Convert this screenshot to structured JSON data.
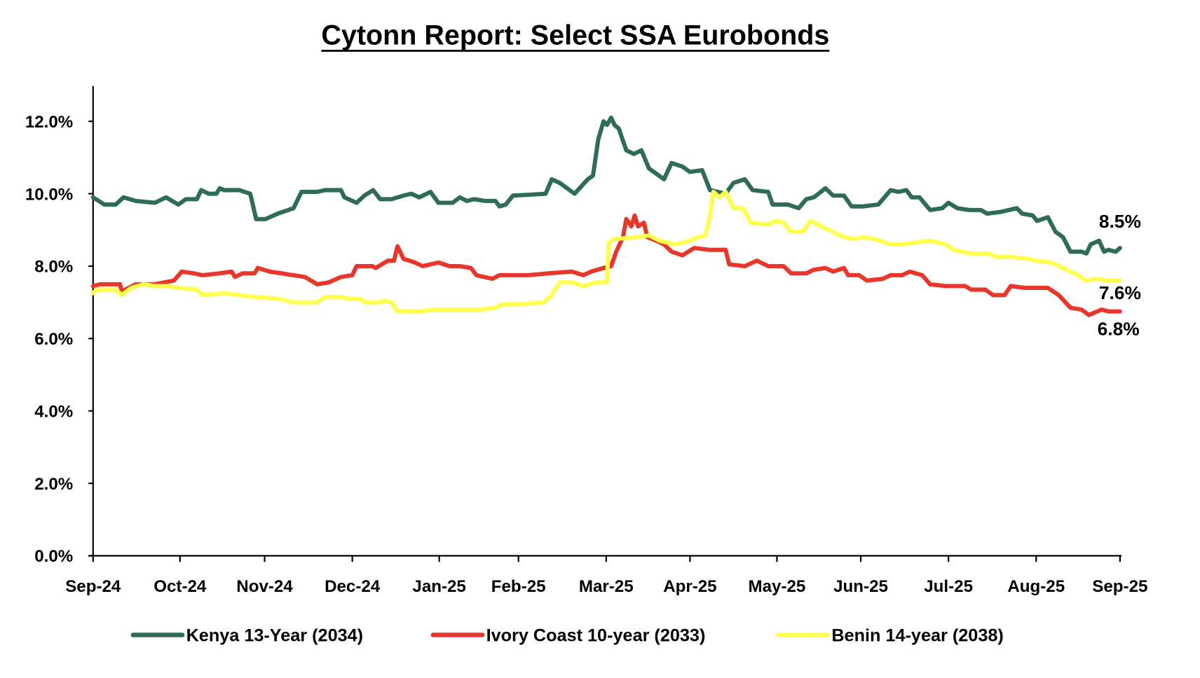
{
  "chart_data": {
    "type": "line",
    "title": "Cytonn Report: Select SSA Eurobonds",
    "xlabel": "",
    "ylabel": "",
    "x_unit": "months since Sep-24",
    "categories": [
      "Sep-24",
      "Oct-24",
      "Nov-24",
      "Dec-24",
      "Jan-25",
      "Feb-25",
      "Mar-25",
      "Apr-25",
      "May-25",
      "Jun-25",
      "Jul-25",
      "Aug-25",
      "Sep-25"
    ],
    "y_ticks": [
      "0.0%",
      "2.0%",
      "4.0%",
      "6.0%",
      "8.0%",
      "10.0%",
      "12.0%"
    ],
    "ylim": [
      0,
      13
    ],
    "grid": false,
    "legend_position": "bottom",
    "series": [
      {
        "name": "Kenya 13-Year (2034)",
        "color": "#2e6b58",
        "end_label": "8.5%",
        "points": [
          [
            0,
            9.9
          ],
          [
            0.13,
            9.7
          ],
          [
            0.26,
            9.7
          ],
          [
            0.35,
            9.9
          ],
          [
            0.49,
            9.8
          ],
          [
            0.71,
            9.75
          ],
          [
            0.84,
            9.9
          ],
          [
            0.98,
            9.7
          ],
          [
            1.07,
            9.85
          ],
          [
            1.2,
            9.85
          ],
          [
            1.25,
            10.1
          ],
          [
            1.34,
            10.0
          ],
          [
            1.43,
            10.0
          ],
          [
            1.47,
            10.15
          ],
          [
            1.52,
            10.1
          ],
          [
            1.7,
            10.1
          ],
          [
            1.83,
            10.0
          ],
          [
            1.9,
            9.3
          ],
          [
            2.01,
            9.3
          ],
          [
            2.15,
            9.45
          ],
          [
            2.33,
            9.6
          ],
          [
            2.42,
            10.05
          ],
          [
            2.6,
            10.05
          ],
          [
            2.69,
            10.1
          ],
          [
            2.87,
            10.1
          ],
          [
            2.91,
            9.9
          ],
          [
            3.05,
            9.75
          ],
          [
            3.14,
            9.95
          ],
          [
            3.24,
            10.1
          ],
          [
            3.32,
            9.85
          ],
          [
            3.45,
            9.85
          ],
          [
            3.59,
            9.95
          ],
          [
            3.68,
            10.0
          ],
          [
            3.77,
            9.9
          ],
          [
            3.9,
            10.05
          ],
          [
            3.99,
            9.75
          ],
          [
            4.17,
            9.75
          ],
          [
            4.26,
            9.9
          ],
          [
            4.35,
            9.8
          ],
          [
            4.44,
            9.85
          ],
          [
            4.58,
            9.8
          ],
          [
            4.71,
            9.8
          ],
          [
            4.76,
            9.65
          ],
          [
            4.84,
            9.7
          ],
          [
            4.93,
            9.95
          ],
          [
            5.11,
            9.97
          ],
          [
            5.31,
            10.0
          ],
          [
            5.38,
            10.4
          ],
          [
            5.47,
            10.3
          ],
          [
            5.64,
            10.0
          ],
          [
            5.79,
            10.4
          ],
          [
            5.85,
            10.5
          ],
          [
            5.91,
            11.5
          ],
          [
            5.97,
            12.0
          ],
          [
            6.01,
            11.9
          ],
          [
            6.06,
            12.1
          ],
          [
            6.1,
            11.9
          ],
          [
            6.15,
            11.8
          ],
          [
            6.24,
            11.2
          ],
          [
            6.33,
            11.1
          ],
          [
            6.42,
            11.2
          ],
          [
            6.51,
            10.7
          ],
          [
            6.69,
            10.4
          ],
          [
            6.78,
            10.85
          ],
          [
            6.91,
            10.75
          ],
          [
            7.0,
            10.6
          ],
          [
            7.14,
            10.65
          ],
          [
            7.23,
            10.1
          ],
          [
            7.41,
            10.0
          ],
          [
            7.5,
            10.3
          ],
          [
            7.63,
            10.4
          ],
          [
            7.72,
            10.1
          ],
          [
            7.9,
            10.05
          ],
          [
            7.95,
            9.7
          ],
          [
            8.13,
            9.7
          ],
          [
            8.26,
            9.6
          ],
          [
            8.35,
            9.85
          ],
          [
            8.44,
            9.9
          ],
          [
            8.58,
            10.15
          ],
          [
            8.67,
            9.95
          ],
          [
            8.8,
            9.95
          ],
          [
            8.89,
            9.65
          ],
          [
            9.02,
            9.65
          ],
          [
            9.2,
            9.7
          ],
          [
            9.34,
            10.1
          ],
          [
            9.43,
            10.05
          ],
          [
            9.52,
            10.1
          ],
          [
            9.58,
            9.9
          ],
          [
            9.67,
            9.9
          ],
          [
            9.79,
            9.55
          ],
          [
            9.93,
            9.6
          ],
          [
            10.0,
            9.75
          ],
          [
            10.1,
            9.6
          ],
          [
            10.24,
            9.55
          ],
          [
            10.37,
            9.55
          ],
          [
            10.44,
            9.45
          ],
          [
            10.6,
            9.5
          ],
          [
            10.78,
            9.6
          ],
          [
            10.84,
            9.45
          ],
          [
            10.96,
            9.4
          ],
          [
            11.01,
            9.25
          ],
          [
            11.14,
            9.35
          ],
          [
            11.23,
            8.95
          ],
          [
            11.32,
            8.8
          ],
          [
            11.41,
            8.4
          ],
          [
            11.54,
            8.4
          ],
          [
            11.6,
            8.35
          ],
          [
            11.65,
            8.6
          ],
          [
            11.75,
            8.7
          ],
          [
            11.81,
            8.4
          ],
          [
            11.86,
            8.45
          ],
          [
            11.95,
            8.4
          ],
          [
            12.0,
            8.5
          ]
        ]
      },
      {
        "name": "Ivory Coast 10-year (2033)",
        "color": "#e8372a",
        "end_label": "6.8%",
        "points": [
          [
            0,
            7.45
          ],
          [
            0.08,
            7.5
          ],
          [
            0.31,
            7.5
          ],
          [
            0.33,
            7.3
          ],
          [
            0.49,
            7.5
          ],
          [
            0.71,
            7.5
          ],
          [
            0.93,
            7.6
          ],
          [
            1.02,
            7.85
          ],
          [
            1.16,
            7.8
          ],
          [
            1.27,
            7.75
          ],
          [
            1.47,
            7.8
          ],
          [
            1.61,
            7.85
          ],
          [
            1.65,
            7.7
          ],
          [
            1.74,
            7.8
          ],
          [
            1.88,
            7.8
          ],
          [
            1.92,
            7.95
          ],
          [
            2.06,
            7.85
          ],
          [
            2.19,
            7.8
          ],
          [
            2.46,
            7.7
          ],
          [
            2.6,
            7.5
          ],
          [
            2.73,
            7.55
          ],
          [
            2.87,
            7.7
          ],
          [
            3.0,
            7.75
          ],
          [
            3.05,
            8.0
          ],
          [
            3.23,
            8.0
          ],
          [
            3.27,
            7.95
          ],
          [
            3.41,
            8.15
          ],
          [
            3.48,
            8.15
          ],
          [
            3.52,
            8.55
          ],
          [
            3.59,
            8.2
          ],
          [
            3.72,
            8.1
          ],
          [
            3.81,
            8.0
          ],
          [
            3.99,
            8.1
          ],
          [
            4.13,
            8.0
          ],
          [
            4.26,
            8.0
          ],
          [
            4.4,
            7.95
          ],
          [
            4.47,
            7.75
          ],
          [
            4.67,
            7.65
          ],
          [
            4.76,
            7.75
          ],
          [
            4.89,
            7.75
          ],
          [
            5.11,
            7.75
          ],
          [
            5.34,
            7.8
          ],
          [
            5.61,
            7.85
          ],
          [
            5.74,
            7.75
          ],
          [
            5.83,
            7.85
          ],
          [
            5.97,
            7.95
          ],
          [
            6.06,
            8.0
          ],
          [
            6.12,
            8.4
          ],
          [
            6.2,
            8.8
          ],
          [
            6.24,
            9.3
          ],
          [
            6.3,
            9.1
          ],
          [
            6.34,
            9.4
          ],
          [
            6.38,
            9.1
          ],
          [
            6.45,
            9.2
          ],
          [
            6.49,
            8.8
          ],
          [
            6.6,
            8.7
          ],
          [
            6.69,
            8.6
          ],
          [
            6.78,
            8.4
          ],
          [
            6.91,
            8.3
          ],
          [
            7.05,
            8.5
          ],
          [
            7.23,
            8.45
          ],
          [
            7.41,
            8.45
          ],
          [
            7.45,
            8.05
          ],
          [
            7.63,
            8.0
          ],
          [
            7.77,
            8.15
          ],
          [
            7.9,
            8.0
          ],
          [
            8.08,
            8.0
          ],
          [
            8.17,
            7.8
          ],
          [
            8.35,
            7.8
          ],
          [
            8.44,
            7.9
          ],
          [
            8.58,
            7.95
          ],
          [
            8.67,
            7.85
          ],
          [
            8.8,
            7.95
          ],
          [
            8.85,
            7.75
          ],
          [
            8.98,
            7.75
          ],
          [
            9.07,
            7.6
          ],
          [
            9.25,
            7.65
          ],
          [
            9.34,
            7.75
          ],
          [
            9.47,
            7.75
          ],
          [
            9.56,
            7.85
          ],
          [
            9.7,
            7.75
          ],
          [
            9.79,
            7.5
          ],
          [
            9.97,
            7.45
          ],
          [
            10.06,
            7.45
          ],
          [
            10.19,
            7.45
          ],
          [
            10.26,
            7.35
          ],
          [
            10.42,
            7.35
          ],
          [
            10.51,
            7.2
          ],
          [
            10.64,
            7.2
          ],
          [
            10.71,
            7.45
          ],
          [
            10.87,
            7.4
          ],
          [
            11.05,
            7.4
          ],
          [
            11.14,
            7.4
          ],
          [
            11.27,
            7.2
          ],
          [
            11.41,
            6.85
          ],
          [
            11.54,
            6.8
          ],
          [
            11.63,
            6.65
          ],
          [
            11.78,
            6.8
          ],
          [
            11.86,
            6.75
          ],
          [
            12.0,
            6.75
          ]
        ]
      },
      {
        "name": "Benin 14-year (2038)",
        "color": "#ffff4d",
        "end_label": "7.6%",
        "points": [
          [
            0,
            7.25
          ],
          [
            0.04,
            7.35
          ],
          [
            0.26,
            7.35
          ],
          [
            0.33,
            7.2
          ],
          [
            0.44,
            7.4
          ],
          [
            0.58,
            7.5
          ],
          [
            0.71,
            7.45
          ],
          [
            0.84,
            7.45
          ],
          [
            0.98,
            7.4
          ],
          [
            1.2,
            7.35
          ],
          [
            1.27,
            7.2
          ],
          [
            1.52,
            7.25
          ],
          [
            1.7,
            7.2
          ],
          [
            1.88,
            7.15
          ],
          [
            2.15,
            7.1
          ],
          [
            2.33,
            7.0
          ],
          [
            2.6,
            7.0
          ],
          [
            2.69,
            7.15
          ],
          [
            2.87,
            7.15
          ],
          [
            2.94,
            7.1
          ],
          [
            3.09,
            7.1
          ],
          [
            3.14,
            7.0
          ],
          [
            3.32,
            7.0
          ],
          [
            3.36,
            7.05
          ],
          [
            3.45,
            7.0
          ],
          [
            3.52,
            6.75
          ],
          [
            3.77,
            6.75
          ],
          [
            3.95,
            6.8
          ],
          [
            4.13,
            6.8
          ],
          [
            4.31,
            6.8
          ],
          [
            4.53,
            6.8
          ],
          [
            4.71,
            6.85
          ],
          [
            4.8,
            6.95
          ],
          [
            5.02,
            6.95
          ],
          [
            5.29,
            7.0
          ],
          [
            5.38,
            7.2
          ],
          [
            5.47,
            7.55
          ],
          [
            5.61,
            7.55
          ],
          [
            5.74,
            7.45
          ],
          [
            5.88,
            7.55
          ],
          [
            6.01,
            7.55
          ],
          [
            6.03,
            8.65
          ],
          [
            6.1,
            8.75
          ],
          [
            6.37,
            8.8
          ],
          [
            6.51,
            8.85
          ],
          [
            6.64,
            8.7
          ],
          [
            6.82,
            8.6
          ],
          [
            7.0,
            8.7
          ],
          [
            7.09,
            8.8
          ],
          [
            7.18,
            8.85
          ],
          [
            7.23,
            9.4
          ],
          [
            7.27,
            10.05
          ],
          [
            7.34,
            9.9
          ],
          [
            7.41,
            10.05
          ],
          [
            7.5,
            9.6
          ],
          [
            7.61,
            9.6
          ],
          [
            7.7,
            9.2
          ],
          [
            7.9,
            9.15
          ],
          [
            7.99,
            9.25
          ],
          [
            8.08,
            9.2
          ],
          [
            8.17,
            8.95
          ],
          [
            8.31,
            8.95
          ],
          [
            8.4,
            9.25
          ],
          [
            8.53,
            9.1
          ],
          [
            8.71,
            8.9
          ],
          [
            8.8,
            8.8
          ],
          [
            8.93,
            8.75
          ],
          [
            9.02,
            8.8
          ],
          [
            9.16,
            8.75
          ],
          [
            9.34,
            8.6
          ],
          [
            9.47,
            8.6
          ],
          [
            9.61,
            8.65
          ],
          [
            9.79,
            8.7
          ],
          [
            9.97,
            8.6
          ],
          [
            10.06,
            8.45
          ],
          [
            10.24,
            8.35
          ],
          [
            10.46,
            8.35
          ],
          [
            10.55,
            8.25
          ],
          [
            10.73,
            8.25
          ],
          [
            10.91,
            8.2
          ],
          [
            11.01,
            8.15
          ],
          [
            11.18,
            8.1
          ],
          [
            11.32,
            7.95
          ],
          [
            11.5,
            7.75
          ],
          [
            11.59,
            7.6
          ],
          [
            11.73,
            7.65
          ],
          [
            11.86,
            7.6
          ],
          [
            12.0,
            7.6
          ]
        ]
      }
    ]
  }
}
